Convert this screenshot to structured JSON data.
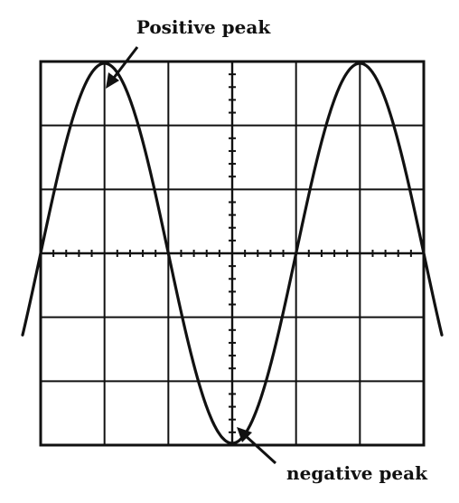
{
  "labels": {
    "positive_peak": "Positive peak",
    "negative_peak": "negative peak"
  },
  "grid": {
    "columns": 6,
    "rows": 6
  },
  "waveform": {
    "type": "sine",
    "cycles_shown": 1.5,
    "starts_at": "zero crossing, rising"
  },
  "colors": {
    "background": "#ffffff",
    "grid": "#111111",
    "trace": "#111111"
  }
}
